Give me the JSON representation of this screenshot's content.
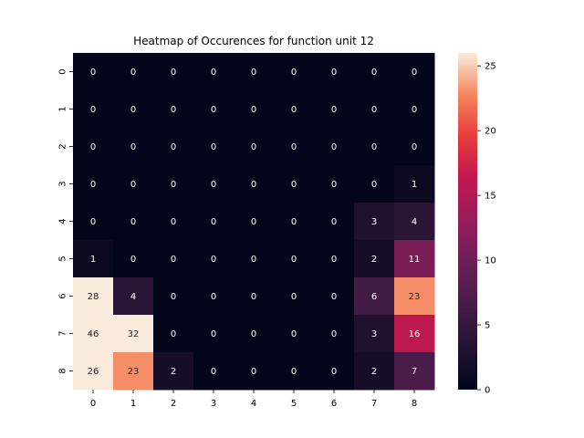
{
  "chart_data": {
    "type": "heatmap",
    "title": "Heatmap of Occurences for function unit 12",
    "x_categories": [
      "0",
      "1",
      "2",
      "3",
      "4",
      "5",
      "6",
      "7",
      "8"
    ],
    "y_categories": [
      "0",
      "1",
      "2",
      "3",
      "4",
      "5",
      "6",
      "7",
      "8"
    ],
    "values": [
      [
        0,
        0,
        0,
        0,
        0,
        0,
        0,
        0,
        0
      ],
      [
        0,
        0,
        0,
        0,
        0,
        0,
        0,
        0,
        0
      ],
      [
        0,
        0,
        0,
        0,
        0,
        0,
        0,
        0,
        0
      ],
      [
        0,
        0,
        0,
        0,
        0,
        0,
        0,
        0,
        1
      ],
      [
        0,
        0,
        0,
        0,
        0,
        0,
        0,
        3,
        4
      ],
      [
        1,
        0,
        0,
        0,
        0,
        0,
        0,
        2,
        11
      ],
      [
        28,
        4,
        0,
        0,
        0,
        0,
        0,
        6,
        23
      ],
      [
        46,
        32,
        0,
        0,
        0,
        0,
        0,
        3,
        16
      ],
      [
        26,
        23,
        2,
        0,
        0,
        0,
        0,
        2,
        7
      ]
    ],
    "colorbar": {
      "min": 0,
      "max": 26,
      "ticks": [
        "0",
        "5",
        "10",
        "15",
        "20",
        "25"
      ],
      "colormap": "rocket"
    }
  }
}
